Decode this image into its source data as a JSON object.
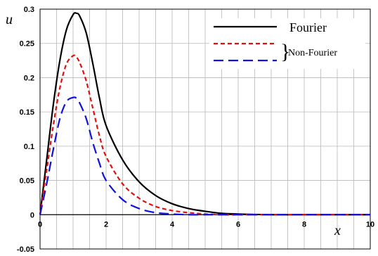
{
  "chart_data": {
    "type": "line",
    "xlabel": "x",
    "ylabel": "u",
    "xlim": [
      0,
      10
    ],
    "ylim": [
      -0.05,
      0.3
    ],
    "x_ticks": [
      0,
      2,
      4,
      6,
      8,
      10
    ],
    "y_ticks": [
      -0.05,
      0,
      0.05,
      0.1,
      0.15,
      0.2,
      0.25,
      0.3
    ],
    "x_tick_labels": [
      "0",
      "2",
      "4",
      "6",
      "8",
      "10"
    ],
    "y_tick_labels": [
      "-0.05",
      "0",
      "0.05",
      "0.1",
      "0.15",
      "0.2",
      "0.25",
      "0.3"
    ],
    "grid": true,
    "legend_position": "top-right",
    "legend_group_label": "Non-Fourier",
    "series": [
      {
        "name": "Fourier",
        "color": "#000000",
        "style": "solid",
        "x": [
          0,
          0.2,
          0.4,
          0.6,
          0.8,
          1.0,
          1.1,
          1.2,
          1.4,
          1.6,
          1.8,
          2.0,
          2.5,
          3.0,
          3.5,
          4.0,
          4.5,
          5.0,
          5.5,
          6.0,
          7.0,
          8.0,
          9.0,
          10.0
        ],
        "values": [
          0,
          0.08,
          0.16,
          0.225,
          0.27,
          0.292,
          0.294,
          0.29,
          0.265,
          0.22,
          0.17,
          0.13,
          0.08,
          0.048,
          0.028,
          0.016,
          0.009,
          0.005,
          0.002,
          0.001,
          0,
          0,
          0,
          0
        ]
      },
      {
        "name": "",
        "color": "#dd1111",
        "style": "dashed",
        "x": [
          0,
          0.2,
          0.4,
          0.6,
          0.8,
          1.0,
          1.1,
          1.2,
          1.4,
          1.6,
          1.8,
          2.0,
          2.5,
          3.0,
          3.5,
          4.0,
          4.5,
          5.0,
          5.5,
          6.0,
          7.0,
          8.0,
          9.0,
          10.0
        ],
        "values": [
          0,
          0.065,
          0.13,
          0.185,
          0.22,
          0.232,
          0.23,
          0.222,
          0.195,
          0.155,
          0.115,
          0.085,
          0.045,
          0.024,
          0.012,
          0.006,
          0.003,
          0.001,
          0,
          0,
          0,
          0,
          0,
          0
        ]
      },
      {
        "name": "",
        "color": "#1111dd",
        "style": "longdash",
        "x": [
          0,
          0.2,
          0.4,
          0.6,
          0.8,
          1.0,
          1.1,
          1.2,
          1.4,
          1.6,
          1.8,
          2.0,
          2.5,
          3.0,
          3.5,
          4.0,
          4.5,
          5.0,
          5.5,
          6.0,
          7.0,
          8.0,
          9.0,
          10.0
        ],
        "values": [
          0,
          0.045,
          0.095,
          0.14,
          0.165,
          0.171,
          0.17,
          0.163,
          0.14,
          0.105,
          0.075,
          0.05,
          0.022,
          0.009,
          0.003,
          0.001,
          0,
          0,
          0,
          0,
          0,
          0,
          0,
          0
        ]
      }
    ]
  }
}
